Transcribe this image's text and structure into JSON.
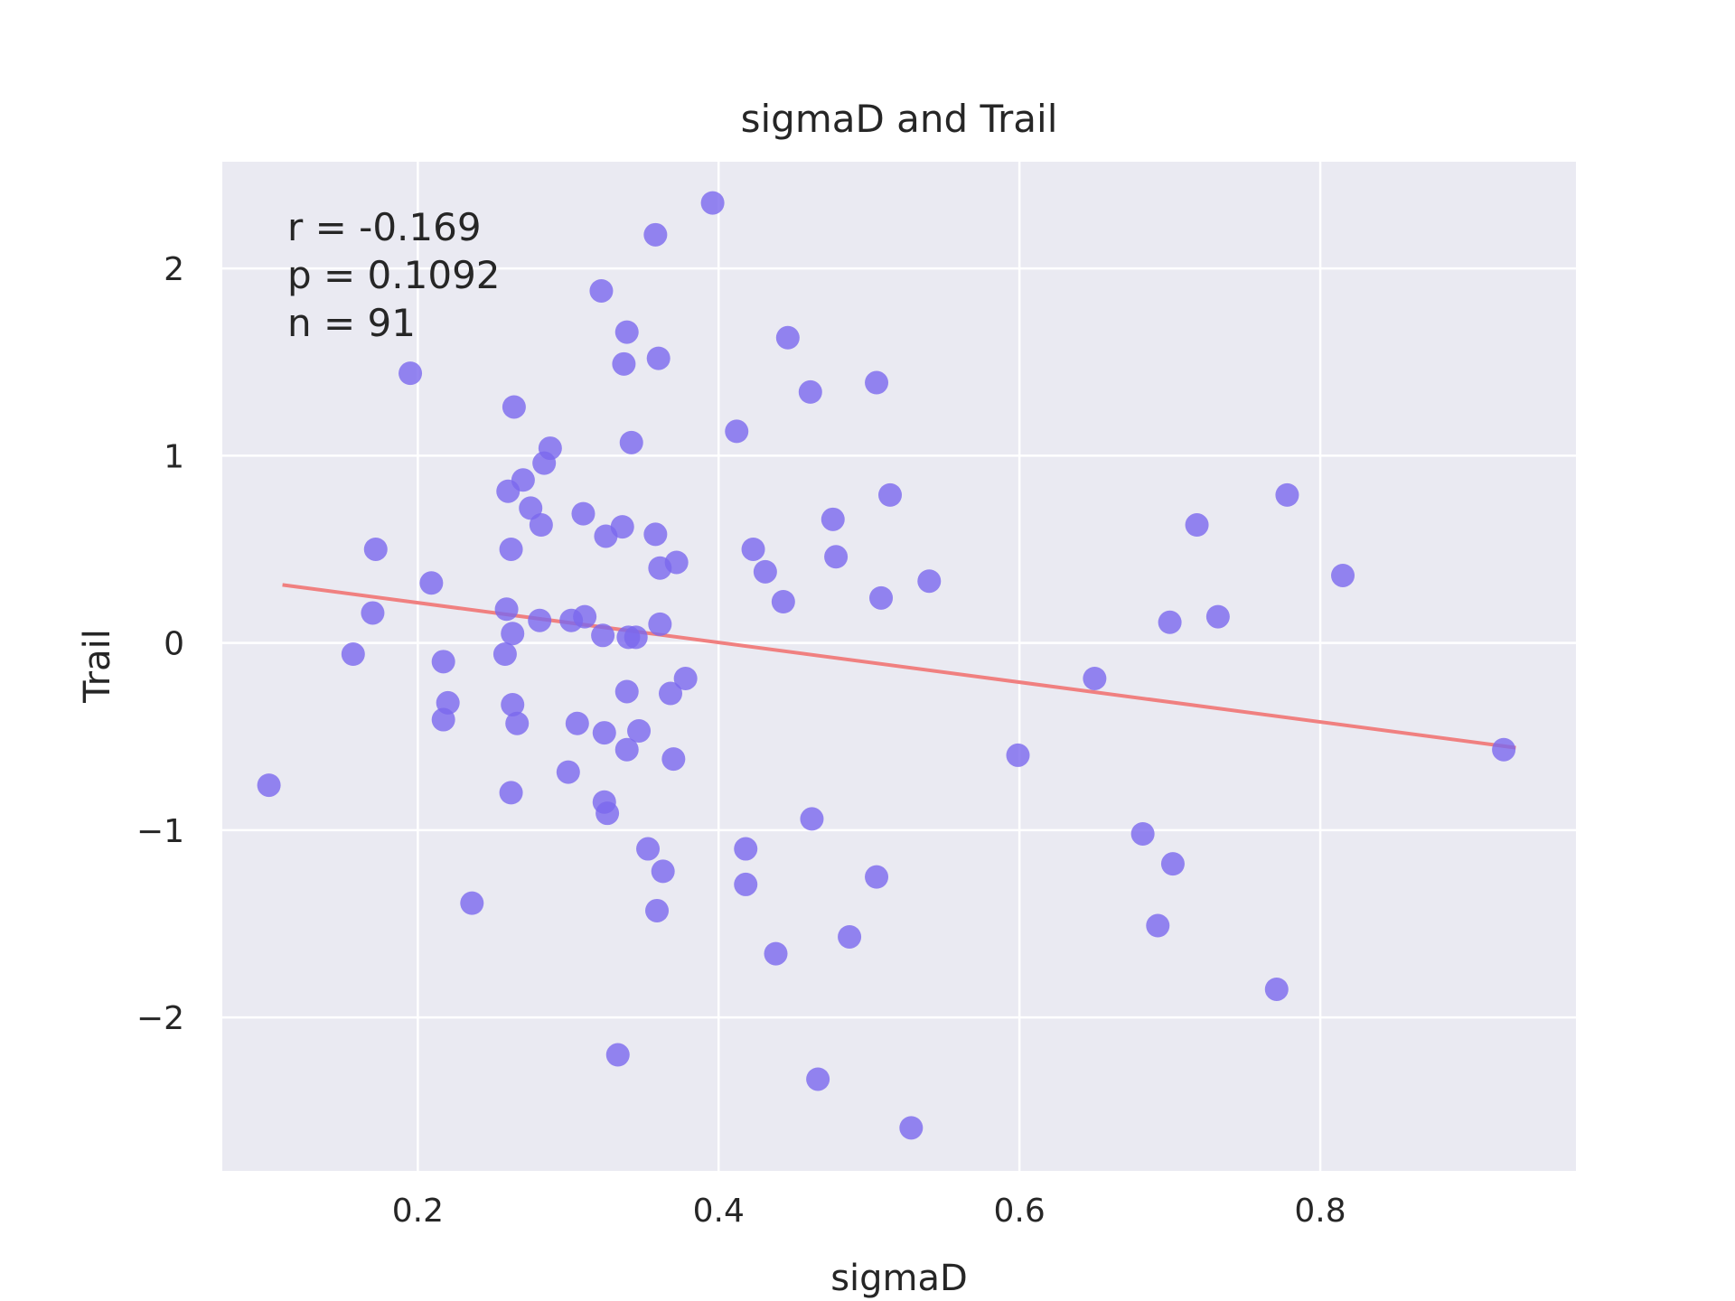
{
  "chart_data": {
    "type": "scatter",
    "title": "sigmaD and Trail",
    "xlabel": "sigmaD",
    "ylabel": "Trail",
    "xlim": [
      0.07,
      0.97
    ],
    "ylim": [
      -2.82,
      2.57
    ],
    "xticks": [
      0.2,
      0.4,
      0.6,
      0.8
    ],
    "xtick_labels": [
      "0.2",
      "0.4",
      "0.6",
      "0.8"
    ],
    "yticks": [
      -2,
      -1,
      0,
      1,
      2
    ],
    "ytick_labels": [
      "−2",
      "−1",
      "0",
      "1",
      "2"
    ],
    "grid": true,
    "background": "#eaeaf2",
    "point_color": "#7b68ee",
    "line_color": "#f08080",
    "annotations": [
      "r = -0.169",
      "p = 0.1092",
      "n = 91"
    ],
    "fit_line": {
      "x": [
        0.11,
        0.93
      ],
      "y": [
        0.31,
        -0.56
      ]
    },
    "points": [
      [
        0.396,
        2.35
      ],
      [
        0.358,
        2.18
      ],
      [
        0.322,
        1.88
      ],
      [
        0.339,
        1.66
      ],
      [
        0.446,
        1.63
      ],
      [
        0.337,
        1.49
      ],
      [
        0.36,
        1.52
      ],
      [
        0.195,
        1.44
      ],
      [
        0.505,
        1.39
      ],
      [
        0.461,
        1.34
      ],
      [
        0.264,
        1.26
      ],
      [
        0.412,
        1.13
      ],
      [
        0.342,
        1.07
      ],
      [
        0.288,
        1.04
      ],
      [
        0.284,
        0.96
      ],
      [
        0.27,
        0.87
      ],
      [
        0.26,
        0.81
      ],
      [
        0.514,
        0.79
      ],
      [
        0.778,
        0.79
      ],
      [
        0.275,
        0.72
      ],
      [
        0.31,
        0.69
      ],
      [
        0.476,
        0.66
      ],
      [
        0.282,
        0.63
      ],
      [
        0.718,
        0.63
      ],
      [
        0.336,
        0.62
      ],
      [
        0.358,
        0.58
      ],
      [
        0.325,
        0.57
      ],
      [
        0.172,
        0.5
      ],
      [
        0.262,
        0.5
      ],
      [
        0.423,
        0.5
      ],
      [
        0.478,
        0.46
      ],
      [
        0.372,
        0.43
      ],
      [
        0.361,
        0.4
      ],
      [
        0.431,
        0.38
      ],
      [
        0.815,
        0.36
      ],
      [
        0.54,
        0.33
      ],
      [
        0.209,
        0.32
      ],
      [
        0.508,
        0.24
      ],
      [
        0.443,
        0.22
      ],
      [
        0.259,
        0.18
      ],
      [
        0.17,
        0.16
      ],
      [
        0.311,
        0.14
      ],
      [
        0.732,
        0.14
      ],
      [
        0.281,
        0.12
      ],
      [
        0.302,
        0.12
      ],
      [
        0.7,
        0.11
      ],
      [
        0.361,
        0.1
      ],
      [
        0.263,
        0.05
      ],
      [
        0.323,
        0.04
      ],
      [
        0.34,
        0.03
      ],
      [
        0.345,
        0.03
      ],
      [
        0.157,
        -0.06
      ],
      [
        0.258,
        -0.06
      ],
      [
        0.217,
        -0.1
      ],
      [
        0.378,
        -0.19
      ],
      [
        0.65,
        -0.19
      ],
      [
        0.339,
        -0.26
      ],
      [
        0.368,
        -0.27
      ],
      [
        0.22,
        -0.32
      ],
      [
        0.263,
        -0.33
      ],
      [
        0.217,
        -0.41
      ],
      [
        0.266,
        -0.43
      ],
      [
        0.306,
        -0.43
      ],
      [
        0.347,
        -0.47
      ],
      [
        0.324,
        -0.48
      ],
      [
        0.339,
        -0.57
      ],
      [
        0.599,
        -0.6
      ],
      [
        0.37,
        -0.62
      ],
      [
        0.101,
        -0.76
      ],
      [
        0.3,
        -0.69
      ],
      [
        0.262,
        -0.8
      ],
      [
        0.324,
        -0.85
      ],
      [
        0.326,
        -0.91
      ],
      [
        0.462,
        -0.94
      ],
      [
        0.682,
        -1.02
      ],
      [
        0.353,
        -1.1
      ],
      [
        0.418,
        -1.1
      ],
      [
        0.702,
        -1.18
      ],
      [
        0.363,
        -1.22
      ],
      [
        0.505,
        -1.25
      ],
      [
        0.418,
        -1.29
      ],
      [
        0.236,
        -1.39
      ],
      [
        0.359,
        -1.43
      ],
      [
        0.692,
        -1.51
      ],
      [
        0.487,
        -1.57
      ],
      [
        0.438,
        -1.66
      ],
      [
        0.771,
        -1.85
      ],
      [
        0.333,
        -2.2
      ],
      [
        0.466,
        -2.33
      ],
      [
        0.528,
        -2.59
      ],
      [
        0.922,
        -0.57
      ]
    ]
  }
}
